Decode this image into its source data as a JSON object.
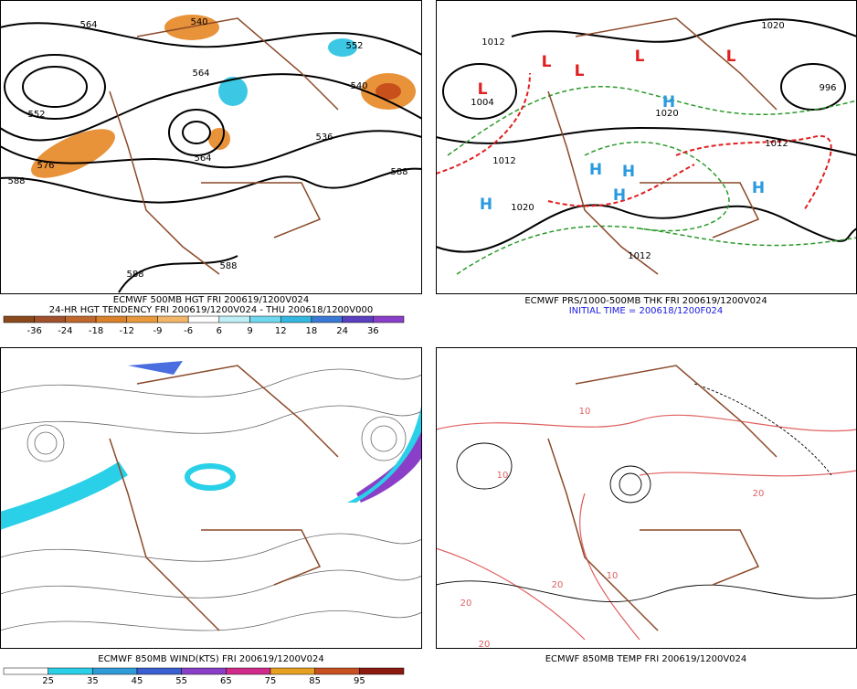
{
  "panels": [
    {
      "caption": [
        "ECMWF 500MB HGT FRI 200619/1200V024",
        "24-HR HGT TENDENCY FRI 200619/1200V024 - THU 200618/1200V000"
      ],
      "colorbar": {
        "labels": [
          "-36",
          "-24",
          "-18",
          "-12",
          "-9",
          "-6",
          "6",
          "9",
          "12",
          "18",
          "24",
          "36"
        ],
        "colors": [
          "#8b4a1c",
          "#a0522d",
          "#c0682c",
          "#d9822b",
          "#e89a3c",
          "#f2b66a",
          "#ffffff",
          "#bfeff7",
          "#6fd8ee",
          "#34b8e0",
          "#3a7ad6",
          "#5a3fc0",
          "#8a3fc8"
        ]
      },
      "map_labels": [
        "564",
        "552",
        "576",
        "588",
        "540",
        "552",
        "540",
        "536",
        "564",
        "564",
        "588",
        "588",
        "588"
      ]
    },
    {
      "caption": [
        "ECMWF PRS/1000-500MB THK FRI 200619/1200V024",
        "INITIAL TIME = 200618/1200F024"
      ],
      "map_labels": [
        "L",
        "L",
        "L",
        "L",
        "L",
        "H",
        "H",
        "H",
        "H",
        "H",
        "H",
        "1012",
        "1020",
        "1012",
        "1020",
        "1004",
        "996",
        "1020",
        "1012",
        "1012"
      ]
    },
    {
      "caption": [
        "ECMWF 850MB WIND(KTS) FRI 200619/1200V024"
      ],
      "colorbar": {
        "labels": [
          "25",
          "35",
          "45",
          "55",
          "65",
          "75",
          "85",
          "95"
        ],
        "colors": [
          "#ffffff",
          "#2ad0e8",
          "#2f9bd8",
          "#3a5fd0",
          "#8a3fc8",
          "#d02a8a",
          "#e8a020",
          "#c85020",
          "#8b1a10"
        ]
      },
      "map_labels": []
    },
    {
      "caption": [
        "ECMWF 850MB TEMP FRI 200619/1200V024"
      ],
      "map_labels": [
        "10",
        "20",
        "10",
        "20",
        "20",
        "10",
        "20"
      ]
    }
  ]
}
